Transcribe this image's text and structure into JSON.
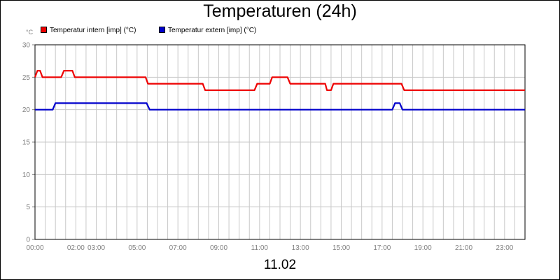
{
  "title": "Temperaturen (24h)",
  "unit": "°C",
  "date": "11.02",
  "colors": {
    "intern": "#ee0000",
    "extern": "#0000cc",
    "grid": "#c8c8c8",
    "axis_text": "#808080"
  },
  "legend": [
    {
      "label": "Temperatur intern [imp] (°C)",
      "color": "#ee0000"
    },
    {
      "label": "Temperatur extern [imp] (°C)",
      "color": "#0000cc"
    }
  ],
  "chart_data": {
    "type": "line",
    "title": "Temperaturen (24h)",
    "ylabel": "°C",
    "ylim": [
      0,
      30
    ],
    "yticks": [
      0,
      5,
      10,
      15,
      20,
      25,
      30
    ],
    "xlim": [
      "00:00",
      "24:00"
    ],
    "xtick_labels": [
      "00:00",
      "02:00",
      "03:00",
      "05:00",
      "07:00",
      "09:00",
      "11:00",
      "13:00",
      "15:00",
      "17:00",
      "19:00",
      "21:00",
      "23:00"
    ],
    "grid": true,
    "legend_position": "top-left",
    "series": [
      {
        "name": "Temperatur intern [imp] (°C)",
        "color": "#ee0000",
        "points": [
          [
            "00:00",
            25
          ],
          [
            "00:07",
            26
          ],
          [
            "00:15",
            26
          ],
          [
            "00:22",
            25
          ],
          [
            "01:17",
            25
          ],
          [
            "01:25",
            26
          ],
          [
            "01:50",
            26
          ],
          [
            "01:57",
            25
          ],
          [
            "05:25",
            25
          ],
          [
            "05:32",
            24
          ],
          [
            "08:13",
            24
          ],
          [
            "08:20",
            23
          ],
          [
            "10:45",
            23
          ],
          [
            "10:53",
            24
          ],
          [
            "11:30",
            24
          ],
          [
            "11:37",
            25
          ],
          [
            "12:22",
            25
          ],
          [
            "12:30",
            24
          ],
          [
            "14:13",
            24
          ],
          [
            "14:18",
            23
          ],
          [
            "14:30",
            23
          ],
          [
            "14:37",
            24
          ],
          [
            "17:57",
            24
          ],
          [
            "18:05",
            23
          ],
          [
            "24:00",
            23
          ]
        ]
      },
      {
        "name": "Temperatur extern [imp] (°C)",
        "color": "#0000cc",
        "points": [
          [
            "00:00",
            20
          ],
          [
            "00:52",
            20
          ],
          [
            "01:00",
            21
          ],
          [
            "05:28",
            21
          ],
          [
            "05:37",
            20
          ],
          [
            "17:30",
            20
          ],
          [
            "17:38",
            21
          ],
          [
            "17:52",
            21
          ],
          [
            "18:00",
            20
          ],
          [
            "24:00",
            20
          ]
        ]
      }
    ]
  }
}
